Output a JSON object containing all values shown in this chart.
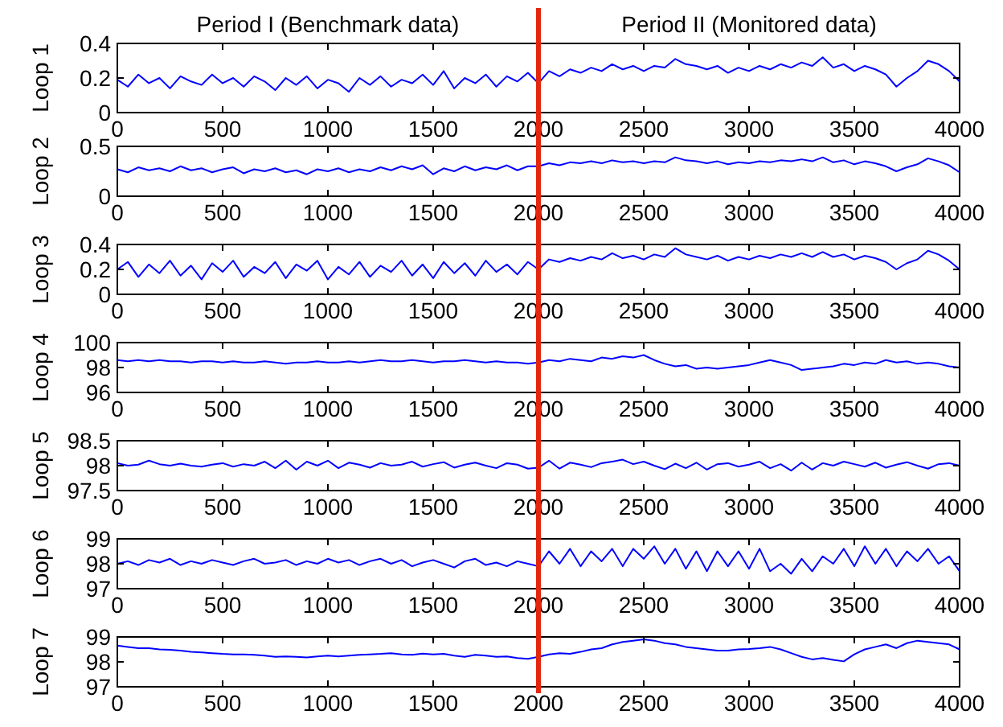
{
  "chart_data": [
    {
      "type": "line",
      "ylabel": "Loop 1",
      "annotations": [
        "Period I (Benchmark data)",
        "Period II (Monitored data)"
      ],
      "xlim": [
        0,
        4000
      ],
      "xticks": [
        0,
        500,
        1000,
        1500,
        2000,
        2500,
        3000,
        3500,
        4000
      ],
      "ylim": [
        0,
        0.4
      ],
      "yticks": [
        0,
        0.2,
        0.4
      ],
      "ref_lines": [
        {
          "axis": "x",
          "value": 2000,
          "color": "#e3260d"
        }
      ],
      "x": [
        0,
        50,
        100,
        150,
        200,
        250,
        300,
        350,
        400,
        450,
        500,
        550,
        600,
        650,
        700,
        750,
        800,
        850,
        900,
        950,
        1000,
        1050,
        1100,
        1150,
        1200,
        1250,
        1300,
        1350,
        1400,
        1450,
        1500,
        1550,
        1600,
        1650,
        1700,
        1750,
        1800,
        1850,
        1900,
        1950,
        2000,
        2050,
        2100,
        2150,
        2200,
        2250,
        2300,
        2350,
        2400,
        2450,
        2500,
        2550,
        2600,
        2650,
        2700,
        2750,
        2800,
        2850,
        2900,
        2950,
        3000,
        3050,
        3100,
        3150,
        3200,
        3250,
        3300,
        3350,
        3400,
        3450,
        3500,
        3550,
        3600,
        3650,
        3700,
        3750,
        3800,
        3850,
        3900,
        3950,
        4000
      ],
      "series": [
        {
          "color": "#0000ff",
          "values": [
            0.19,
            0.15,
            0.22,
            0.17,
            0.2,
            0.14,
            0.21,
            0.18,
            0.16,
            0.22,
            0.17,
            0.2,
            0.15,
            0.21,
            0.18,
            0.13,
            0.2,
            0.16,
            0.21,
            0.14,
            0.19,
            0.17,
            0.12,
            0.2,
            0.16,
            0.21,
            0.15,
            0.19,
            0.17,
            0.22,
            0.16,
            0.24,
            0.14,
            0.2,
            0.17,
            0.22,
            0.15,
            0.21,
            0.18,
            0.23,
            0.17,
            0.24,
            0.21,
            0.25,
            0.23,
            0.26,
            0.24,
            0.28,
            0.25,
            0.27,
            0.24,
            0.27,
            0.26,
            0.31,
            0.28,
            0.27,
            0.25,
            0.27,
            0.23,
            0.26,
            0.24,
            0.27,
            0.25,
            0.28,
            0.26,
            0.29,
            0.27,
            0.32,
            0.26,
            0.28,
            0.24,
            0.27,
            0.25,
            0.22,
            0.15,
            0.2,
            0.24,
            0.3,
            0.28,
            0.24,
            0.18
          ]
        }
      ]
    },
    {
      "type": "line",
      "ylabel": "Loop 2",
      "xlim": [
        0,
        4000
      ],
      "xticks": [
        0,
        500,
        1000,
        1500,
        2000,
        2500,
        3000,
        3500,
        4000
      ],
      "ylim": [
        0,
        0.5
      ],
      "yticks": [
        0,
        0.5
      ],
      "ref_lines": [
        {
          "axis": "x",
          "value": 2000,
          "color": "#e3260d"
        }
      ],
      "x": [
        0,
        50,
        100,
        150,
        200,
        250,
        300,
        350,
        400,
        450,
        500,
        550,
        600,
        650,
        700,
        750,
        800,
        850,
        900,
        950,
        1000,
        1050,
        1100,
        1150,
        1200,
        1250,
        1300,
        1350,
        1400,
        1450,
        1500,
        1550,
        1600,
        1650,
        1700,
        1750,
        1800,
        1850,
        1900,
        1950,
        2000,
        2050,
        2100,
        2150,
        2200,
        2250,
        2300,
        2350,
        2400,
        2450,
        2500,
        2550,
        2600,
        2650,
        2700,
        2750,
        2800,
        2850,
        2900,
        2950,
        3000,
        3050,
        3100,
        3150,
        3200,
        3250,
        3300,
        3350,
        3400,
        3450,
        3500,
        3550,
        3600,
        3650,
        3700,
        3750,
        3800,
        3850,
        3900,
        3950,
        4000
      ],
      "series": [
        {
          "color": "#0000ff",
          "values": [
            0.27,
            0.24,
            0.29,
            0.26,
            0.28,
            0.25,
            0.3,
            0.26,
            0.28,
            0.24,
            0.27,
            0.29,
            0.23,
            0.27,
            0.25,
            0.28,
            0.24,
            0.26,
            0.22,
            0.27,
            0.25,
            0.28,
            0.24,
            0.27,
            0.25,
            0.29,
            0.26,
            0.3,
            0.27,
            0.31,
            0.22,
            0.28,
            0.25,
            0.3,
            0.26,
            0.29,
            0.27,
            0.31,
            0.26,
            0.3,
            0.3,
            0.33,
            0.31,
            0.34,
            0.33,
            0.35,
            0.33,
            0.36,
            0.34,
            0.35,
            0.33,
            0.35,
            0.34,
            0.39,
            0.36,
            0.35,
            0.33,
            0.35,
            0.32,
            0.34,
            0.33,
            0.35,
            0.34,
            0.36,
            0.35,
            0.37,
            0.35,
            0.39,
            0.34,
            0.36,
            0.32,
            0.35,
            0.33,
            0.3,
            0.25,
            0.29,
            0.32,
            0.38,
            0.35,
            0.31,
            0.24
          ]
        }
      ]
    },
    {
      "type": "line",
      "ylabel": "Loop 3",
      "xlim": [
        0,
        4000
      ],
      "xticks": [
        0,
        500,
        1000,
        1500,
        2000,
        2500,
        3000,
        3500,
        4000
      ],
      "ylim": [
        0,
        0.4
      ],
      "yticks": [
        0,
        0.2,
        0.4
      ],
      "ref_lines": [
        {
          "axis": "x",
          "value": 2000,
          "color": "#e3260d"
        }
      ],
      "x": [
        0,
        50,
        100,
        150,
        200,
        250,
        300,
        350,
        400,
        450,
        500,
        550,
        600,
        650,
        700,
        750,
        800,
        850,
        900,
        950,
        1000,
        1050,
        1100,
        1150,
        1200,
        1250,
        1300,
        1350,
        1400,
        1450,
        1500,
        1550,
        1600,
        1650,
        1700,
        1750,
        1800,
        1850,
        1900,
        1950,
        2000,
        2050,
        2100,
        2150,
        2200,
        2250,
        2300,
        2350,
        2400,
        2450,
        2500,
        2550,
        2600,
        2650,
        2700,
        2750,
        2800,
        2850,
        2900,
        2950,
        3000,
        3050,
        3100,
        3150,
        3200,
        3250,
        3300,
        3350,
        3400,
        3450,
        3500,
        3550,
        3600,
        3650,
        3700,
        3750,
        3800,
        3850,
        3900,
        3950,
        4000
      ],
      "series": [
        {
          "color": "#0000ff",
          "values": [
            0.2,
            0.26,
            0.14,
            0.24,
            0.17,
            0.27,
            0.15,
            0.23,
            0.12,
            0.25,
            0.18,
            0.27,
            0.14,
            0.22,
            0.17,
            0.26,
            0.13,
            0.24,
            0.19,
            0.27,
            0.12,
            0.22,
            0.16,
            0.26,
            0.14,
            0.23,
            0.18,
            0.27,
            0.15,
            0.24,
            0.13,
            0.26,
            0.17,
            0.25,
            0.15,
            0.27,
            0.18,
            0.24,
            0.16,
            0.26,
            0.2,
            0.28,
            0.26,
            0.29,
            0.27,
            0.3,
            0.28,
            0.33,
            0.29,
            0.31,
            0.28,
            0.32,
            0.3,
            0.37,
            0.32,
            0.3,
            0.28,
            0.31,
            0.27,
            0.3,
            0.28,
            0.31,
            0.29,
            0.32,
            0.3,
            0.33,
            0.3,
            0.34,
            0.3,
            0.32,
            0.28,
            0.31,
            0.29,
            0.26,
            0.2,
            0.25,
            0.28,
            0.35,
            0.32,
            0.27,
            0.2
          ]
        }
      ]
    },
    {
      "type": "line",
      "ylabel": "Loop 4",
      "xlim": [
        0,
        4000
      ],
      "xticks": [
        0,
        500,
        1000,
        1500,
        2000,
        2500,
        3000,
        3500,
        4000
      ],
      "ylim": [
        96,
        100
      ],
      "yticks": [
        96,
        98,
        100
      ],
      "ref_lines": [
        {
          "axis": "x",
          "value": 2000,
          "color": "#e3260d"
        }
      ],
      "x": [
        0,
        50,
        100,
        150,
        200,
        250,
        300,
        350,
        400,
        450,
        500,
        550,
        600,
        650,
        700,
        750,
        800,
        850,
        900,
        950,
        1000,
        1050,
        1100,
        1150,
        1200,
        1250,
        1300,
        1350,
        1400,
        1450,
        1500,
        1550,
        1600,
        1650,
        1700,
        1750,
        1800,
        1850,
        1900,
        1950,
        2000,
        2050,
        2100,
        2150,
        2200,
        2250,
        2300,
        2350,
        2400,
        2450,
        2500,
        2550,
        2600,
        2650,
        2700,
        2750,
        2800,
        2850,
        2900,
        2950,
        3000,
        3050,
        3100,
        3150,
        3200,
        3250,
        3300,
        3350,
        3400,
        3450,
        3500,
        3550,
        3600,
        3650,
        3700,
        3750,
        3800,
        3850,
        3900,
        3950,
        4000
      ],
      "series": [
        {
          "color": "#0000ff",
          "values": [
            98.6,
            98.5,
            98.6,
            98.5,
            98.6,
            98.5,
            98.5,
            98.4,
            98.5,
            98.5,
            98.4,
            98.5,
            98.4,
            98.4,
            98.5,
            98.4,
            98.3,
            98.4,
            98.4,
            98.5,
            98.4,
            98.4,
            98.5,
            98.4,
            98.5,
            98.6,
            98.5,
            98.5,
            98.6,
            98.5,
            98.4,
            98.5,
            98.5,
            98.6,
            98.5,
            98.4,
            98.5,
            98.4,
            98.4,
            98.3,
            98.4,
            98.6,
            98.5,
            98.7,
            98.6,
            98.5,
            98.8,
            98.7,
            98.9,
            98.8,
            99,
            98.6,
            98.3,
            98.1,
            98.2,
            97.9,
            98,
            97.9,
            98,
            98.1,
            98.2,
            98.4,
            98.6,
            98.4,
            98.2,
            97.8,
            97.9,
            98,
            98.1,
            98.3,
            98.2,
            98.4,
            98.3,
            98.6,
            98.4,
            98.5,
            98.3,
            98.4,
            98.3,
            98.1,
            98
          ]
        }
      ]
    },
    {
      "type": "line",
      "ylabel": "Loop 5",
      "xlim": [
        0,
        4000
      ],
      "xticks": [
        0,
        500,
        1000,
        1500,
        2000,
        2500,
        3000,
        3500,
        4000
      ],
      "ylim": [
        97.5,
        98.5
      ],
      "yticks": [
        97.5,
        98,
        98.5
      ],
      "ref_lines": [
        {
          "axis": "x",
          "value": 2000,
          "color": "#e3260d"
        }
      ],
      "x": [
        0,
        50,
        100,
        150,
        200,
        250,
        300,
        350,
        400,
        450,
        500,
        550,
        600,
        650,
        700,
        750,
        800,
        850,
        900,
        950,
        1000,
        1050,
        1100,
        1150,
        1200,
        1250,
        1300,
        1350,
        1400,
        1450,
        1500,
        1550,
        1600,
        1650,
        1700,
        1750,
        1800,
        1850,
        1900,
        1950,
        2000,
        2050,
        2100,
        2150,
        2200,
        2250,
        2300,
        2350,
        2400,
        2450,
        2500,
        2550,
        2600,
        2650,
        2700,
        2750,
        2800,
        2850,
        2900,
        2950,
        3000,
        3050,
        3100,
        3150,
        3200,
        3250,
        3300,
        3350,
        3400,
        3450,
        3500,
        3550,
        3600,
        3650,
        3700,
        3750,
        3800,
        3850,
        3900,
        3950,
        4000
      ],
      "series": [
        {
          "color": "#0000ff",
          "values": [
            98.05,
            98,
            98.02,
            98.1,
            98.03,
            98,
            98.04,
            98,
            97.98,
            98.02,
            98.05,
            97.98,
            98.03,
            98,
            98.08,
            97.95,
            98.1,
            97.92,
            98.08,
            98,
            98.1,
            97.95,
            98.06,
            98.02,
            97.96,
            98.05,
            98,
            98.02,
            98.08,
            97.98,
            98.03,
            98.07,
            97.96,
            98.02,
            98.06,
            98,
            97.95,
            98.05,
            98.02,
            97.94,
            97.96,
            98.1,
            97.94,
            98.06,
            98.02,
            97.97,
            98.05,
            98.08,
            98.12,
            98.03,
            98.08,
            98,
            97.93,
            98.04,
            97.95,
            98.06,
            97.92,
            98.03,
            98.05,
            97.98,
            98.02,
            98.08,
            97.95,
            98.03,
            97.9,
            98.06,
            97.92,
            98.05,
            98,
            98.08,
            98.03,
            97.98,
            98.06,
            97.96,
            98.02,
            98.07,
            98,
            97.94,
            98.03,
            98.05,
            98
          ]
        }
      ]
    },
    {
      "type": "line",
      "ylabel": "Loop 6",
      "xlim": [
        0,
        4000
      ],
      "xticks": [
        0,
        500,
        1000,
        1500,
        2000,
        2500,
        3000,
        3500,
        4000
      ],
      "ylim": [
        97,
        99
      ],
      "yticks": [
        97,
        98,
        99
      ],
      "ref_lines": [
        {
          "axis": "x",
          "value": 2000,
          "color": "#e3260d"
        }
      ],
      "x": [
        0,
        50,
        100,
        150,
        200,
        250,
        300,
        350,
        400,
        450,
        500,
        550,
        600,
        650,
        700,
        750,
        800,
        850,
        900,
        950,
        1000,
        1050,
        1100,
        1150,
        1200,
        1250,
        1300,
        1350,
        1400,
        1450,
        1500,
        1550,
        1600,
        1650,
        1700,
        1750,
        1800,
        1850,
        1900,
        1950,
        2000,
        2050,
        2100,
        2150,
        2200,
        2250,
        2300,
        2350,
        2400,
        2450,
        2500,
        2550,
        2600,
        2650,
        2700,
        2750,
        2800,
        2850,
        2900,
        2950,
        3000,
        3050,
        3100,
        3150,
        3200,
        3250,
        3300,
        3350,
        3400,
        3450,
        3500,
        3550,
        3600,
        3650,
        3700,
        3750,
        3800,
        3850,
        3900,
        3950,
        4000
      ],
      "series": [
        {
          "color": "#0000ff",
          "values": [
            98,
            98.1,
            97.95,
            98.15,
            98.05,
            98.2,
            97.95,
            98.1,
            98,
            98.15,
            98.05,
            97.95,
            98.1,
            98.2,
            98,
            98.05,
            98.15,
            97.95,
            98.1,
            98,
            98.2,
            98.05,
            98.15,
            97.95,
            98.1,
            98.2,
            98,
            98.15,
            97.9,
            98.05,
            98.15,
            98,
            97.85,
            98.1,
            98.2,
            97.95,
            98.05,
            97.9,
            98.1,
            98,
            97.9,
            98.5,
            98,
            98.6,
            97.9,
            98.5,
            98.1,
            98.6,
            97.9,
            98.6,
            98.2,
            98.7,
            98,
            98.6,
            97.8,
            98.5,
            97.7,
            98.5,
            97.9,
            98.5,
            97.8,
            98.6,
            97.7,
            98,
            97.6,
            98.2,
            97.7,
            98.3,
            98,
            98.6,
            97.9,
            98.7,
            98,
            98.6,
            97.9,
            98.5,
            98.1,
            98.6,
            98,
            98.3,
            97.7
          ]
        }
      ]
    },
    {
      "type": "line",
      "ylabel": "Loop 7",
      "xlim": [
        0,
        4000
      ],
      "xticks": [
        0,
        500,
        1000,
        1500,
        2000,
        2500,
        3000,
        3500,
        4000
      ],
      "ylim": [
        97,
        99
      ],
      "yticks": [
        97,
        98,
        99
      ],
      "ref_lines": [
        {
          "axis": "x",
          "value": 2000,
          "color": "#e3260d"
        }
      ],
      "x": [
        0,
        50,
        100,
        150,
        200,
        250,
        300,
        350,
        400,
        450,
        500,
        550,
        600,
        650,
        700,
        750,
        800,
        850,
        900,
        950,
        1000,
        1050,
        1100,
        1150,
        1200,
        1250,
        1300,
        1350,
        1400,
        1450,
        1500,
        1550,
        1600,
        1650,
        1700,
        1750,
        1800,
        1850,
        1900,
        1950,
        2000,
        2050,
        2100,
        2150,
        2200,
        2250,
        2300,
        2350,
        2400,
        2450,
        2500,
        2550,
        2600,
        2650,
        2700,
        2750,
        2800,
        2850,
        2900,
        2950,
        3000,
        3050,
        3100,
        3150,
        3200,
        3250,
        3300,
        3350,
        3400,
        3450,
        3500,
        3550,
        3600,
        3650,
        3700,
        3750,
        3800,
        3850,
        3900,
        3950,
        4000
      ],
      "series": [
        {
          "color": "#0000ff",
          "values": [
            98.65,
            98.6,
            98.55,
            98.55,
            98.5,
            98.48,
            98.45,
            98.4,
            98.38,
            98.35,
            98.32,
            98.3,
            98.3,
            98.28,
            98.25,
            98.2,
            98.22,
            98.2,
            98.18,
            98.22,
            98.25,
            98.22,
            98.25,
            98.28,
            98.3,
            98.32,
            98.35,
            98.3,
            98.28,
            98.33,
            98.3,
            98.32,
            98.25,
            98.2,
            98.28,
            98.25,
            98.2,
            98.22,
            98.15,
            98.12,
            98.2,
            98.3,
            98.35,
            98.32,
            98.4,
            98.5,
            98.55,
            98.7,
            98.8,
            98.85,
            98.9,
            98.85,
            98.75,
            98.7,
            98.6,
            98.55,
            98.5,
            98.45,
            98.45,
            98.5,
            98.52,
            98.55,
            98.6,
            98.5,
            98.35,
            98.2,
            98.1,
            98.15,
            98.08,
            98.02,
            98.3,
            98.5,
            98.6,
            98.7,
            98.55,
            98.75,
            98.85,
            98.8,
            98.75,
            98.7,
            98.5
          ]
        }
      ]
    }
  ]
}
